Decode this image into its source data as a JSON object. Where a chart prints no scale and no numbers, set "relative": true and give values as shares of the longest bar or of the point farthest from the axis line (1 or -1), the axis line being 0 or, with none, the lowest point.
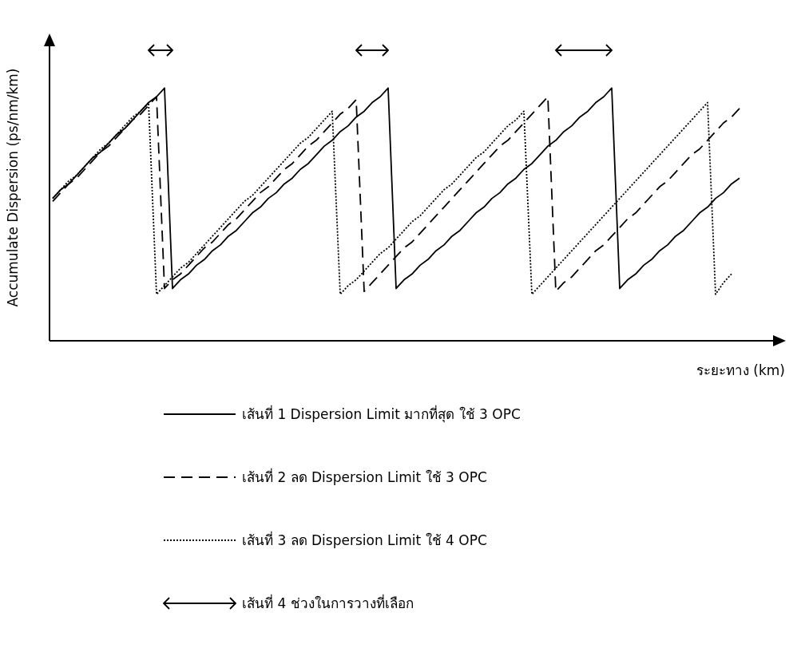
{
  "chart_data": {
    "type": "line",
    "relative": true,
    "xlabel": "ระยะทาง (km)",
    "ylabel": "Accumulate Dispersion (ps/nm/km)",
    "legend": "bottom",
    "categories": [
      null,
      null,
      null,
      null,
      null,
      null,
      null,
      null,
      null,
      null,
      null,
      null,
      null,
      null,
      null,
      null,
      null,
      null,
      null,
      null,
      null,
      null,
      null,
      null,
      null,
      null,
      null,
      null,
      null,
      null,
      null,
      null,
      null,
      null,
      null,
      null,
      null,
      null,
      null,
      null,
      null,
      null,
      null,
      null,
      null,
      null,
      null,
      null,
      null,
      null,
      null,
      null,
      null,
      null,
      null,
      null,
      null,
      null,
      null,
      null,
      null,
      null,
      null,
      null,
      null,
      null,
      null,
      null,
      null,
      null,
      null,
      null,
      null,
      null,
      null,
      null,
      null,
      null,
      null,
      null,
      null,
      null,
      null,
      null,
      null,
      null,
      null,
      null,
      null
    ],
    "series": [
      {
        "name": "เส้นที่ 1 Dispersion Limit มากที่สุด ใช้ 3 OPC",
        "color": "#000000",
        "line_style": "solid",
        "values": [
          0.49,
          0.52,
          0.54,
          0.57,
          0.6,
          0.63,
          0.65,
          0.68,
          0.71,
          0.73,
          0.76,
          0.79,
          0.82,
          0.84,
          0.87,
          0.18,
          0.21,
          0.23,
          0.26,
          0.28,
          0.31,
          0.33,
          0.36,
          0.38,
          0.41,
          0.44,
          0.46,
          0.49,
          0.51,
          0.54,
          0.56,
          0.59,
          0.61,
          0.64,
          0.67,
          0.69,
          0.72,
          0.74,
          0.77,
          0.79,
          0.82,
          0.84,
          0.87,
          0.18,
          0.21,
          0.23,
          0.26,
          0.28,
          0.31,
          0.33,
          0.36,
          0.38,
          0.41,
          0.44,
          0.46,
          0.49,
          0.51,
          0.54,
          0.56,
          0.59,
          0.61,
          0.64,
          0.67,
          0.69,
          0.72,
          0.74,
          0.77,
          0.79,
          0.82,
          0.84,
          0.87,
          0.18,
          0.21,
          0.23,
          0.26,
          0.28,
          0.31,
          0.33,
          0.36,
          0.38,
          0.41,
          0.44,
          0.46,
          0.49,
          0.51,
          0.54,
          0.56,
          null,
          null
        ]
      },
      {
        "name": "เส้นที่ 2 ลด Dispersion Limit ใช้ 3 OPC",
        "color": "#000000",
        "line_style": "dashed",
        "values": [
          0.48,
          0.51,
          0.54,
          0.56,
          0.59,
          0.62,
          0.65,
          0.67,
          0.7,
          0.73,
          0.76,
          0.78,
          0.81,
          0.84,
          0.18,
          0.21,
          0.23,
          0.26,
          0.29,
          0.32,
          0.34,
          0.37,
          0.4,
          0.42,
          0.45,
          0.48,
          0.51,
          0.53,
          0.56,
          0.59,
          0.61,
          0.64,
          0.67,
          0.69,
          0.72,
          0.75,
          0.78,
          0.8,
          0.83,
          0.17,
          0.2,
          0.23,
          0.26,
          0.29,
          0.32,
          0.34,
          0.37,
          0.4,
          0.43,
          0.46,
          0.49,
          0.52,
          0.55,
          0.58,
          0.61,
          0.64,
          0.67,
          0.69,
          0.72,
          0.75,
          0.78,
          0.81,
          0.84,
          0.17,
          0.2,
          0.22,
          0.25,
          0.28,
          0.31,
          0.33,
          0.36,
          0.39,
          0.42,
          0.44,
          0.47,
          0.5,
          0.53,
          0.55,
          0.58,
          0.61,
          0.64,
          0.66,
          0.69,
          0.72,
          0.75,
          0.77,
          0.8,
          null,
          null
        ]
      },
      {
        "name": "เส้นที่ 3 ลด Dispersion Limit ใช้ 4 OPC",
        "color": "#000000",
        "line_style": "dotted",
        "values": [
          0.49,
          0.52,
          0.55,
          0.57,
          0.6,
          0.63,
          0.66,
          0.68,
          0.71,
          0.74,
          0.77,
          0.79,
          0.82,
          0.16,
          0.19,
          0.22,
          0.25,
          0.27,
          0.3,
          0.33,
          0.36,
          0.39,
          0.42,
          0.45,
          0.48,
          0.5,
          0.53,
          0.56,
          0.59,
          0.62,
          0.65,
          0.68,
          0.7,
          0.73,
          0.76,
          0.79,
          0.16,
          0.19,
          0.21,
          0.24,
          0.27,
          0.3,
          0.32,
          0.35,
          0.38,
          0.41,
          0.43,
          0.46,
          0.49,
          0.52,
          0.54,
          0.57,
          0.6,
          0.63,
          0.65,
          0.68,
          0.71,
          0.74,
          0.76,
          0.79,
          0.16,
          0.19,
          0.22,
          0.25,
          0.28,
          0.31,
          0.34,
          0.37,
          0.4,
          0.43,
          0.46,
          0.49,
          0.52,
          0.55,
          0.58,
          0.61,
          0.64,
          0.67,
          0.7,
          0.73,
          0.76,
          0.79,
          0.82,
          0.16,
          0.2,
          0.23,
          null,
          null,
          null
        ]
      },
      {
        "name": "เส้นที่ 4 ช่วงในการวางที่เลือก",
        "color": "#000000",
        "line_style": "solid",
        "values": [
          null,
          null,
          null,
          null,
          null,
          null,
          null,
          null,
          null,
          null,
          null,
          null,
          1,
          1,
          1,
          1,
          null,
          null,
          null,
          null,
          null,
          null,
          null,
          null,
          null,
          null,
          null,
          null,
          null,
          null,
          null,
          null,
          null,
          null,
          null,
          null,
          null,
          null,
          1,
          1,
          1,
          1,
          1,
          null,
          null,
          null,
          null,
          null,
          null,
          null,
          null,
          null,
          null,
          null,
          null,
          null,
          null,
          null,
          null,
          null,
          null,
          null,
          null,
          1,
          1,
          1,
          1,
          1,
          1,
          1,
          1,
          null,
          null,
          null,
          null,
          null,
          null,
          null,
          null,
          null,
          null,
          null,
          null,
          null,
          null,
          null,
          null,
          null,
          null
        ]
      }
    ]
  }
}
